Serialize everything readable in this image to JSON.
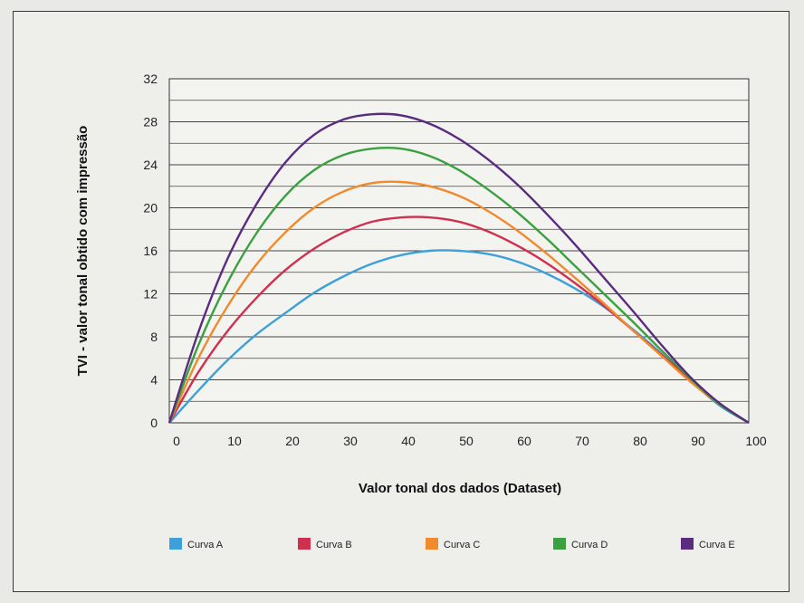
{
  "chart_data": {
    "type": "line",
    "title": "",
    "xlabel": "Valor tonal dos dados (Dataset)",
    "ylabel": "TVI - valor tonal obtido com impressão",
    "xlim": [
      0,
      100
    ],
    "ylim": [
      0,
      32
    ],
    "xticks": [
      0,
      10,
      20,
      30,
      40,
      50,
      60,
      70,
      80,
      90,
      100
    ],
    "yticks": [
      0,
      4,
      8,
      12,
      16,
      20,
      24,
      28,
      32
    ],
    "grid": "horizontal",
    "legend_position": "bottom",
    "x": [
      0,
      5,
      10,
      15,
      20,
      25,
      30,
      35,
      40,
      45,
      50,
      55,
      60,
      65,
      70,
      75,
      80,
      85,
      90,
      95,
      100
    ],
    "series": [
      {
        "name": "Curva A",
        "color": "#3ea0d8",
        "values": [
          0,
          3.0,
          5.8,
          8.2,
          10.2,
          12.1,
          13.6,
          14.8,
          15.6,
          16.0,
          16.0,
          15.7,
          15.0,
          13.9,
          12.5,
          10.8,
          8.7,
          6.4,
          3.9,
          1.6,
          0
        ]
      },
      {
        "name": "Curva B",
        "color": "#d0304f",
        "values": [
          0,
          4.7,
          8.5,
          11.6,
          14.2,
          16.2,
          17.7,
          18.7,
          19.1,
          19.1,
          18.7,
          17.8,
          16.5,
          14.9,
          13.0,
          10.9,
          8.6,
          6.3,
          4.0,
          1.7,
          0
        ]
      },
      {
        "name": "Curva C",
        "color": "#f08a2c",
        "values": [
          0,
          6.0,
          10.8,
          14.7,
          17.7,
          20.0,
          21.5,
          22.3,
          22.4,
          22.0,
          21.1,
          19.7,
          17.9,
          15.8,
          13.5,
          11.1,
          8.6,
          6.2,
          3.8,
          1.7,
          0
        ]
      },
      {
        "name": "Curva D",
        "color": "#3aa040",
        "values": [
          0,
          7.2,
          13.0,
          17.6,
          21.1,
          23.5,
          24.9,
          25.5,
          25.5,
          24.8,
          23.5,
          21.7,
          19.6,
          17.2,
          14.6,
          12.0,
          9.4,
          6.7,
          4.1,
          1.7,
          0
        ]
      },
      {
        "name": "Curva E",
        "color": "#5a2c80",
        "values": [
          0,
          8.4,
          15.2,
          20.3,
          24.2,
          26.8,
          28.2,
          28.7,
          28.6,
          27.8,
          26.4,
          24.5,
          22.2,
          19.5,
          16.6,
          13.5,
          10.4,
          7.2,
          4.2,
          1.8,
          0
        ]
      }
    ]
  }
}
